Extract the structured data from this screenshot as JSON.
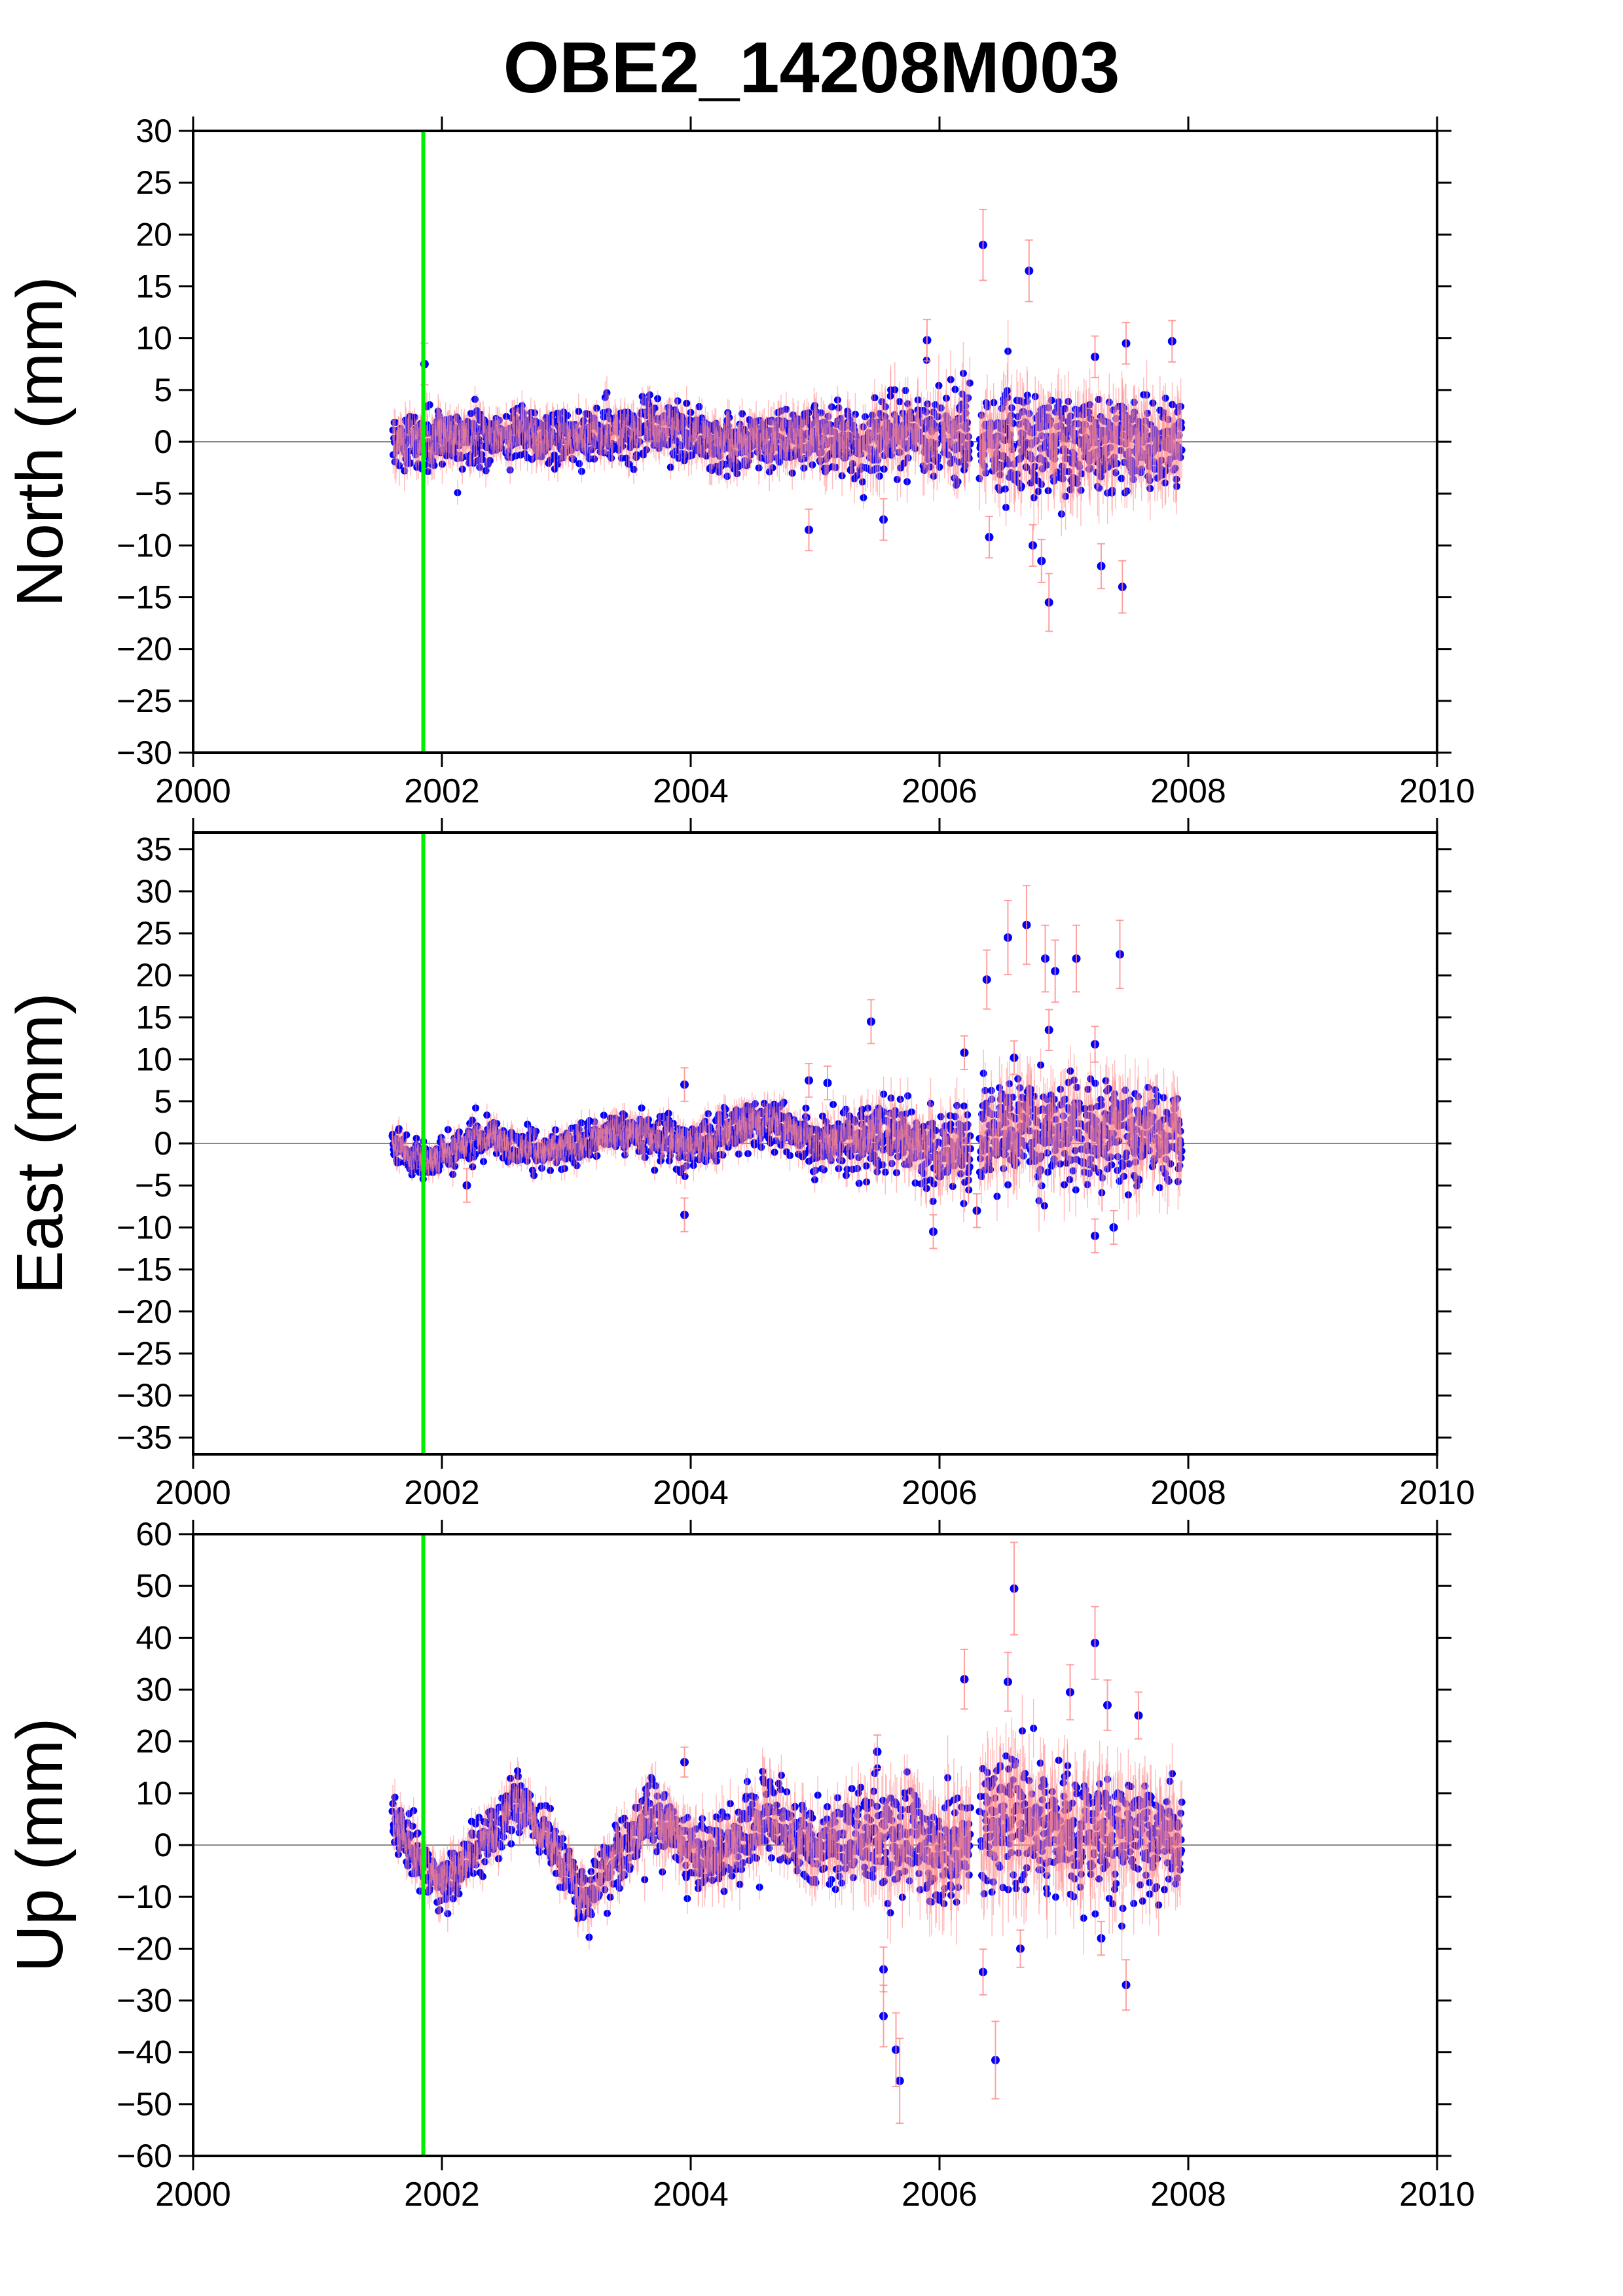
{
  "title": "OBE2_14208M003",
  "colors": {
    "points": "#0000ff",
    "errorbars": "#ff8a8a",
    "event_line": "#00ee00",
    "zero_line": "#888888",
    "frame": "#000000"
  },
  "chart_data": [
    {
      "type": "scatter",
      "name": "north",
      "ylabel": "North (mm)",
      "xlabel": "",
      "xlim": [
        2000,
        2010
      ],
      "ylim": [
        -30,
        30
      ],
      "xticks": [
        "2000",
        "2002",
        "2004",
        "2006",
        "2008",
        "2010"
      ],
      "yticks": [
        "30",
        "25",
        "20",
        "15",
        "10",
        "5",
        "0",
        "−5",
        "−10",
        "−15",
        "−20",
        "−25",
        "−30"
      ],
      "event_line_x": 2001.85,
      "data_range_x": [
        2001.6,
        2007.95
      ],
      "outliers": [
        {
          "x": 2006.35,
          "y": 19.0
        },
        {
          "x": 2006.72,
          "y": 16.5
        },
        {
          "x": 2005.9,
          "y": 9.8
        },
        {
          "x": 2007.5,
          "y": 9.5
        },
        {
          "x": 2007.87,
          "y": 9.7
        },
        {
          "x": 2001.86,
          "y": 7.5
        },
        {
          "x": 2007.25,
          "y": 8.2
        },
        {
          "x": 2004.95,
          "y": -8.5
        },
        {
          "x": 2006.88,
          "y": -15.5
        },
        {
          "x": 2007.47,
          "y": -14.0
        },
        {
          "x": 2006.82,
          "y": -11.5
        },
        {
          "x": 2007.3,
          "y": -12.0
        },
        {
          "x": 2006.4,
          "y": -9.2
        },
        {
          "x": 2006.75,
          "y": -10.0
        },
        {
          "x": 2005.55,
          "y": -7.5
        }
      ],
      "trend": [
        {
          "x": 2001.6,
          "y": 0.0,
          "sd": 1.4
        },
        {
          "x": 2002.5,
          "y": 0.8,
          "sd": 1.2
        },
        {
          "x": 2003.0,
          "y": 0.3,
          "sd": 1.2
        },
        {
          "x": 2003.8,
          "y": 1.5,
          "sd": 1.3
        },
        {
          "x": 2004.2,
          "y": -0.2,
          "sd": 1.3
        },
        {
          "x": 2005.0,
          "y": 0.5,
          "sd": 1.4
        },
        {
          "x": 2005.5,
          "y": 0.0,
          "sd": 1.8
        },
        {
          "x": 2006.3,
          "y": 0.5,
          "sd": 2.2
        },
        {
          "x": 2007.0,
          "y": -0.3,
          "sd": 2.4
        },
        {
          "x": 2007.95,
          "y": 0.0,
          "sd": 2.3
        }
      ],
      "gaps": [
        [
          2006.25,
          2006.32
        ]
      ]
    },
    {
      "type": "scatter",
      "name": "east",
      "ylabel": "East (mm)",
      "xlabel": "",
      "xlim": [
        2000,
        2010
      ],
      "ylim": [
        -37,
        37
      ],
      "xticks": [
        "2000",
        "2002",
        "2004",
        "2006",
        "2008",
        "2010"
      ],
      "yticks": [
        "35",
        "30",
        "25",
        "20",
        "15",
        "10",
        "5",
        "0",
        "−5",
        "−10",
        "−15",
        "−20",
        "−25",
        "−30",
        "−35"
      ],
      "event_line_x": 2001.85,
      "data_range_x": [
        2001.6,
        2007.95
      ],
      "outliers": [
        {
          "x": 2006.55,
          "y": 24.5
        },
        {
          "x": 2006.7,
          "y": 26.0
        },
        {
          "x": 2006.85,
          "y": 22.0
        },
        {
          "x": 2007.1,
          "y": 22.0
        },
        {
          "x": 2007.45,
          "y": 22.5
        },
        {
          "x": 2006.38,
          "y": 19.5
        },
        {
          "x": 2006.93,
          "y": 20.5
        },
        {
          "x": 2006.88,
          "y": 13.5
        },
        {
          "x": 2005.45,
          "y": 14.5
        },
        {
          "x": 2007.25,
          "y": 11.8
        },
        {
          "x": 2006.2,
          "y": 10.8
        },
        {
          "x": 2006.6,
          "y": 10.2
        },
        {
          "x": 2003.95,
          "y": 7.0
        },
        {
          "x": 2004.95,
          "y": 7.5
        },
        {
          "x": 2005.1,
          "y": 7.2
        },
        {
          "x": 2003.95,
          "y": -8.5
        },
        {
          "x": 2007.25,
          "y": -11.0
        },
        {
          "x": 2005.95,
          "y": -10.5
        },
        {
          "x": 2007.4,
          "y": -10.0
        },
        {
          "x": 2002.2,
          "y": -5.0
        },
        {
          "x": 2006.3,
          "y": -8.0
        }
      ],
      "trend": [
        {
          "x": 2001.6,
          "y": 0.0,
          "sd": 1.0
        },
        {
          "x": 2001.9,
          "y": -2.0,
          "sd": 1.0
        },
        {
          "x": 2002.3,
          "y": 0.8,
          "sd": 1.0
        },
        {
          "x": 2002.8,
          "y": -1.0,
          "sd": 1.0
        },
        {
          "x": 2003.5,
          "y": 1.5,
          "sd": 1.2
        },
        {
          "x": 2004.0,
          "y": -0.5,
          "sd": 1.3
        },
        {
          "x": 2004.6,
          "y": 3.0,
          "sd": 1.3
        },
        {
          "x": 2005.0,
          "y": 0.0,
          "sd": 1.3
        },
        {
          "x": 2005.6,
          "y": 1.5,
          "sd": 2.0
        },
        {
          "x": 2006.0,
          "y": -1.5,
          "sd": 2.2
        },
        {
          "x": 2006.6,
          "y": 2.0,
          "sd": 3.0
        },
        {
          "x": 2007.95,
          "y": 1.0,
          "sd": 2.8
        }
      ],
      "gaps": [
        [
          2006.25,
          2006.32
        ]
      ]
    },
    {
      "type": "scatter",
      "name": "up",
      "ylabel": "Up (mm)",
      "xlabel": "",
      "xlim": [
        2000,
        2010
      ],
      "ylim": [
        -60,
        60
      ],
      "xticks": [
        "2000",
        "2002",
        "2004",
        "2006",
        "2008",
        "2010"
      ],
      "yticks": [
        "60",
        "50",
        "40",
        "30",
        "20",
        "10",
        "0",
        "−10",
        "−20",
        "−30",
        "−40",
        "−50",
        "−60"
      ],
      "event_line_x": 2001.85,
      "data_range_x": [
        2001.6,
        2007.95
      ],
      "outliers": [
        {
          "x": 2006.6,
          "y": 49.5
        },
        {
          "x": 2007.25,
          "y": 39.0
        },
        {
          "x": 2006.2,
          "y": 32.0
        },
        {
          "x": 2006.55,
          "y": 31.5
        },
        {
          "x": 2007.05,
          "y": 29.5
        },
        {
          "x": 2007.35,
          "y": 27.0
        },
        {
          "x": 2007.6,
          "y": 25.0
        },
        {
          "x": 2005.55,
          "y": -24.0
        },
        {
          "x": 2005.55,
          "y": -33.0
        },
        {
          "x": 2005.65,
          "y": -39.5
        },
        {
          "x": 2005.68,
          "y": -45.5
        },
        {
          "x": 2006.45,
          "y": -41.5
        },
        {
          "x": 2006.35,
          "y": -24.5
        },
        {
          "x": 2007.5,
          "y": -27.0
        },
        {
          "x": 2006.65,
          "y": -20.0
        },
        {
          "x": 2007.3,
          "y": -18.0
        },
        {
          "x": 2005.5,
          "y": 18.0
        },
        {
          "x": 2003.95,
          "y": 16.0
        }
      ],
      "trend": [
        {
          "x": 2001.6,
          "y": 5.0,
          "sd": 2.5
        },
        {
          "x": 2001.8,
          "y": -2.0,
          "sd": 2.5
        },
        {
          "x": 2002.0,
          "y": -7.0,
          "sd": 2.5
        },
        {
          "x": 2002.3,
          "y": 0.0,
          "sd": 2.5
        },
        {
          "x": 2002.6,
          "y": 8.0,
          "sd": 2.5
        },
        {
          "x": 2002.9,
          "y": 0.0,
          "sd": 2.5
        },
        {
          "x": 2003.15,
          "y": -12.0,
          "sd": 2.5
        },
        {
          "x": 2003.4,
          "y": -2.0,
          "sd": 3.0
        },
        {
          "x": 2003.7,
          "y": 6.0,
          "sd": 3.5
        },
        {
          "x": 2004.1,
          "y": -3.0,
          "sd": 3.5
        },
        {
          "x": 2004.6,
          "y": 5.0,
          "sd": 3.5
        },
        {
          "x": 2005.0,
          "y": -1.0,
          "sd": 3.5
        },
        {
          "x": 2005.5,
          "y": 2.0,
          "sd": 5.0
        },
        {
          "x": 2006.0,
          "y": -2.0,
          "sd": 5.5
        },
        {
          "x": 2006.6,
          "y": 5.0,
          "sd": 6.5
        },
        {
          "x": 2007.4,
          "y": 2.0,
          "sd": 6.0
        },
        {
          "x": 2007.95,
          "y": 1.0,
          "sd": 5.0
        }
      ],
      "gaps": [
        [
          2006.25,
          2006.32
        ]
      ]
    }
  ]
}
